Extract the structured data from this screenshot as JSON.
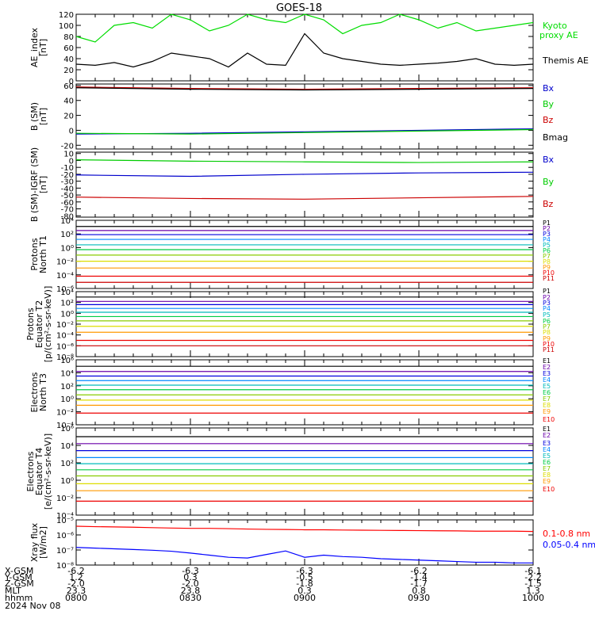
{
  "title": "GOES-18",
  "footer": {
    "row_labels": [
      "X-GSM",
      "Y-GSM",
      "Z-GSM",
      "MLT",
      "hhmm",
      "2024 Nov 08"
    ],
    "columns": [
      [
        "-6.2",
        "1.2",
        "-2.0",
        "23.3",
        "0800"
      ],
      [
        "-6.3",
        "0.3",
        "-2.0",
        "23.8",
        "0830"
      ],
      [
        "-6.3",
        "-0.5",
        "-1.8",
        "0.3",
        "0900"
      ],
      [
        "-6.2",
        "-1.4",
        "-1.7",
        "0.8",
        "0930"
      ],
      [
        "-6.1",
        "-2.2",
        "-1.5",
        "1.3",
        "1000"
      ]
    ]
  },
  "chart_data": [
    {
      "type": "line",
      "ylabel": [
        "AE_index",
        "[nT]"
      ],
      "ylim": [
        0,
        120
      ],
      "yticks": [
        "0",
        "20",
        "40",
        "60",
        "80",
        "100",
        "120"
      ],
      "legend": [
        "Kyoto proxy AE",
        "Themis AE"
      ],
      "x": [
        0,
        5,
        10,
        15,
        20,
        25,
        30,
        35,
        40,
        45,
        50,
        55,
        60,
        65,
        70,
        75,
        80,
        85,
        90,
        95,
        100,
        105,
        110,
        115,
        120
      ],
      "series": [
        {
          "name": "Kyoto proxy AE",
          "color": "#00dd00",
          "values": [
            80,
            70,
            100,
            105,
            95,
            120,
            110,
            90,
            100,
            120,
            110,
            105,
            120,
            110,
            85,
            100,
            105,
            120,
            110,
            95,
            105,
            90,
            95,
            100,
            105
          ]
        },
        {
          "name": "Themis AE",
          "color": "#000000",
          "values": [
            30,
            28,
            33,
            25,
            35,
            50,
            45,
            40,
            25,
            50,
            30,
            28,
            85,
            50,
            40,
            35,
            30,
            28,
            30,
            32,
            35,
            40,
            30,
            28,
            30
          ]
        }
      ]
    },
    {
      "type": "line",
      "ylabel": [
        "B (SM)",
        "[nT]"
      ],
      "ylim": [
        -25,
        62
      ],
      "yticks": [
        "-20",
        "0",
        "20",
        "40",
        "60"
      ],
      "legend": [
        "Bx",
        "By",
        "Bz",
        "Bmag"
      ],
      "x": [
        0,
        30,
        60,
        90,
        120
      ],
      "series": [
        {
          "name": "Bx",
          "color": "#0000cc",
          "values": [
            -5,
            -4,
            -2,
            0,
            2
          ]
        },
        {
          "name": "By",
          "color": "#00cc00",
          "values": [
            -4,
            -5,
            -3,
            -1,
            1
          ]
        },
        {
          "name": "Bz",
          "color": "#cc0000",
          "values": [
            58,
            56,
            55,
            56,
            57
          ]
        },
        {
          "name": "Bmag",
          "color": "#000000",
          "values": [
            57,
            55,
            54,
            55,
            56
          ]
        }
      ]
    },
    {
      "type": "line",
      "ylabel": [
        "B (SM)-IGRF (SM)",
        "[nT]"
      ],
      "ylim": [
        -82,
        12
      ],
      "yticks": [
        "-80",
        "-70",
        "-60",
        "-50",
        "-40",
        "-30",
        "-20",
        "-10",
        "0",
        "10"
      ],
      "legend": [
        "Bx",
        "By",
        "Bz"
      ],
      "x": [
        0,
        30,
        60,
        90,
        120
      ],
      "series": [
        {
          "name": "Bx",
          "color": "#0000cc",
          "values": [
            -21,
            -23,
            -20,
            -18,
            -17
          ]
        },
        {
          "name": "By",
          "color": "#00cc00",
          "values": [
            1,
            -1,
            -2,
            -3,
            -2
          ]
        },
        {
          "name": "Bz",
          "color": "#cc0000",
          "values": [
            -53,
            -55,
            -56,
            -54,
            -52
          ]
        }
      ]
    },
    {
      "type": "line",
      "log": true,
      "ylabel": [
        "Protons",
        "North T1"
      ],
      "ylim": [
        -6,
        4
      ],
      "yticks": [
        "10⁴",
        "10²",
        "10⁰",
        "10⁻²",
        "10⁻⁴",
        "10⁻⁶"
      ],
      "legend": [
        "P1",
        "P2",
        "P3",
        "P4",
        "P5",
        "P6",
        "P7",
        "P8",
        "P9",
        "P10",
        "P11"
      ],
      "levels": [
        3.1,
        2.5,
        1.9,
        1.2,
        0.4,
        -0.3,
        -1.1,
        -2.0,
        -3.0,
        -4.2,
        -5.1
      ],
      "x": [
        0,
        30,
        60,
        90,
        120
      ]
    },
    {
      "type": "line",
      "log": true,
      "ylabel": [
        "Protons",
        "Equator T2",
        "[p/(cm²-s-sr-keV)]"
      ],
      "ylim": [
        -8,
        4
      ],
      "yticks": [
        "10⁴",
        "10²",
        "10⁰",
        "10⁻²",
        "10⁻⁴",
        "10⁻⁶",
        "10⁻⁸"
      ],
      "legend": [
        "P1",
        "P2",
        "P3",
        "P4",
        "P5",
        "P6",
        "P7",
        "P8",
        "P9",
        "P10",
        "P11"
      ],
      "levels": [
        3.0,
        2.2,
        1.6,
        0.9,
        0.2,
        -0.6,
        -1.4,
        -2.4,
        -3.5,
        -5.0,
        -6.0
      ],
      "x": [
        0,
        30,
        60,
        90,
        120
      ]
    },
    {
      "type": "line",
      "log": true,
      "ylabel": [
        "Electrons",
        "North T3"
      ],
      "ylim": [
        -4,
        6
      ],
      "yticks": [
        "10⁶",
        "10⁴",
        "10²",
        "10⁰",
        "10⁻²",
        "10⁻⁴"
      ],
      "legend": [
        "E1",
        "E2",
        "E3",
        "E4",
        "E5",
        "E6",
        "E7",
        "E8",
        "E9",
        "E10"
      ],
      "levels": [
        5.0,
        4.2,
        3.5,
        2.8,
        2.1,
        1.4,
        0.6,
        -0.2,
        -1.0,
        -2.2
      ],
      "x": [
        0,
        30,
        60,
        90,
        120
      ]
    },
    {
      "type": "line",
      "log": true,
      "ylabel": [
        "Electrons",
        "Equator T4",
        "[e/(cm²-s-sr-keV)]"
      ],
      "ylim": [
        -4,
        6
      ],
      "yticks": [
        "10⁶",
        "10⁴",
        "10²",
        "10⁰",
        "10⁻²",
        "10⁻⁴"
      ],
      "legend": [
        "E1",
        "E2",
        "E3",
        "E4",
        "E5",
        "E6",
        "E7",
        "E8",
        "E9",
        "E10"
      ],
      "levels": [
        5.0,
        4.2,
        3.4,
        2.6,
        1.9,
        1.2,
        0.5,
        -0.4,
        -1.2,
        -2.4
      ],
      "x": [
        0,
        30,
        60,
        90,
        120
      ]
    },
    {
      "type": "line",
      "log": true,
      "ylabel": [
        "Xray flux",
        "[W/m2]"
      ],
      "ylim": [
        -8.2,
        -5
      ],
      "yticks": [
        "10⁻⁵",
        "10⁻⁶",
        "10⁻⁷",
        "10⁻⁸"
      ],
      "legend": [
        "0.1-0.8 nm",
        "0.05-0.4 nm"
      ],
      "x": [
        0,
        5,
        10,
        15,
        20,
        25,
        30,
        35,
        40,
        45,
        50,
        55,
        60,
        65,
        70,
        75,
        80,
        85,
        90,
        95,
        100,
        105,
        110,
        115,
        120
      ],
      "series": [
        {
          "name": "0.1-0.8 nm",
          "color": "#ff0000",
          "values": [
            -5.45,
            -5.48,
            -5.5,
            -5.52,
            -5.55,
            -5.58,
            -5.6,
            -5.6,
            -5.62,
            -5.65,
            -5.67,
            -5.68,
            -5.7,
            -5.7,
            -5.72,
            -5.73,
            -5.74,
            -5.75,
            -5.76,
            -5.77,
            -5.78,
            -5.8,
            -5.8,
            -5.8,
            -5.82
          ]
        },
        {
          "name": "0.05-0.4 nm",
          "color": "#0000ff",
          "values": [
            -6.95,
            -7.0,
            -7.05,
            -7.1,
            -7.15,
            -7.22,
            -7.35,
            -7.5,
            -7.65,
            -7.7,
            -7.45,
            -7.2,
            -7.65,
            -7.5,
            -7.6,
            -7.65,
            -7.75,
            -7.8,
            -7.85,
            -7.9,
            -7.95,
            -8.0,
            -8.0,
            -8.05,
            -8.05
          ]
        }
      ]
    }
  ]
}
